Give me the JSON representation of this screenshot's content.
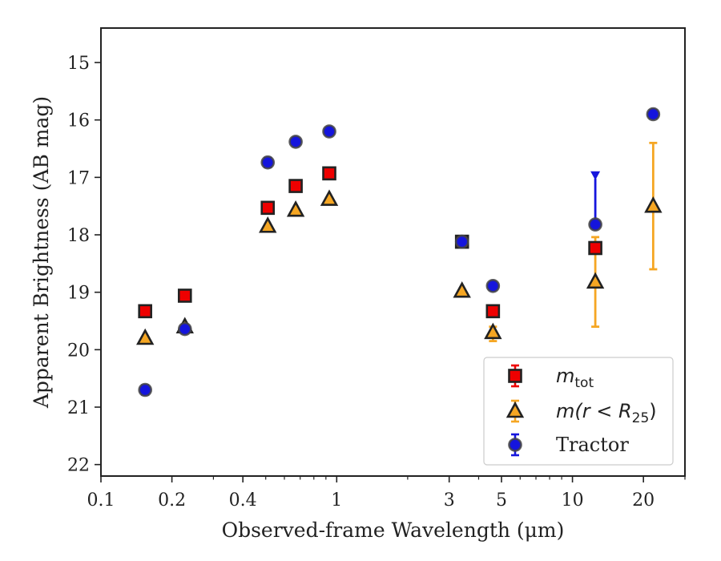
{
  "chart_data": {
    "type": "scatter",
    "xlabel": "Observed-frame Wavelength (μm)",
    "ylabel": "Apparent Brightness (AB mag)",
    "xscale": "log",
    "xlim": [
      0.1,
      30
    ],
    "ylim": [
      22.2,
      14.4
    ],
    "y_inverted": true,
    "xticks": [
      {
        "value": 0.1,
        "label": "0.1"
      },
      {
        "value": 0.2,
        "label": "0.2"
      },
      {
        "value": 0.4,
        "label": "0.4"
      },
      {
        "value": 1,
        "label": "1"
      },
      {
        "value": 3,
        "label": "3"
      },
      {
        "value": 5,
        "label": "5"
      },
      {
        "value": 10,
        "label": "10"
      },
      {
        "value": 20,
        "label": "20"
      }
    ],
    "yticks": [
      15,
      16,
      17,
      18,
      19,
      20,
      21,
      22
    ],
    "legend_position": "lower-right",
    "series": [
      {
        "name": "m_tot",
        "marker": "square",
        "face": "#ee0000",
        "edge": "#222222",
        "errcolor": "#ee0000",
        "points": [
          {
            "x": 0.154,
            "y": 19.33
          },
          {
            "x": 0.227,
            "y": 19.06
          },
          {
            "x": 0.51,
            "y": 17.53
          },
          {
            "x": 0.67,
            "y": 17.15
          },
          {
            "x": 0.93,
            "y": 16.93
          },
          {
            "x": 3.4,
            "y": 18.12
          },
          {
            "x": 4.6,
            "y": 19.33
          },
          {
            "x": 12.5,
            "y": 18.23
          }
        ]
      },
      {
        "name": "m(r < R25)",
        "marker": "triangle",
        "face": "#f5a623",
        "edge": "#222222",
        "errcolor": "#f5a623",
        "points": [
          {
            "x": 0.154,
            "y": 19.8
          },
          {
            "x": 0.227,
            "y": 19.6
          },
          {
            "x": 0.51,
            "y": 17.85
          },
          {
            "x": 0.67,
            "y": 17.57
          },
          {
            "x": 0.93,
            "y": 17.38
          },
          {
            "x": 3.4,
            "y": 18.98
          },
          {
            "x": 4.6,
            "y": 19.7,
            "err": [
              0.1,
              0.15
            ]
          },
          {
            "x": 12.5,
            "y": 18.82,
            "err": [
              0.78,
              0.78
            ]
          },
          {
            "x": 22.0,
            "y": 17.5,
            "err": [
              1.1,
              1.1
            ]
          }
        ]
      },
      {
        "name": "Tractor",
        "marker": "circle",
        "face": "#1515dd",
        "edge": "#444444",
        "errcolor": "#1515dd",
        "points": [
          {
            "x": 0.154,
            "y": 20.7,
            "err": [
              0.08,
              0.08
            ]
          },
          {
            "x": 0.227,
            "y": 19.64
          },
          {
            "x": 0.51,
            "y": 16.74,
            "err": [
              0.08,
              0.08
            ]
          },
          {
            "x": 0.67,
            "y": 16.38,
            "err": [
              0.06,
              0.06
            ]
          },
          {
            "x": 0.93,
            "y": 16.2,
            "err": [
              0.06,
              0.06
            ]
          },
          {
            "x": 3.4,
            "y": 18.12
          },
          {
            "x": 4.6,
            "y": 18.89,
            "err": [
              0.05,
              0.05
            ]
          },
          {
            "x": 12.5,
            "y": 17.82,
            "err": [
              0.8,
              0.0
            ],
            "upper_limit": true
          },
          {
            "x": 22.0,
            "y": 15.9,
            "err": [
              0.07,
              0.07
            ]
          }
        ]
      }
    ],
    "legend": [
      {
        "label": "m",
        "sub": "tot",
        "marker": "square"
      },
      {
        "label": "m(r < R",
        "sub": "25",
        "suffix": ")",
        "marker": "triangle"
      },
      {
        "label": "Tractor",
        "marker": "circle"
      }
    ]
  }
}
